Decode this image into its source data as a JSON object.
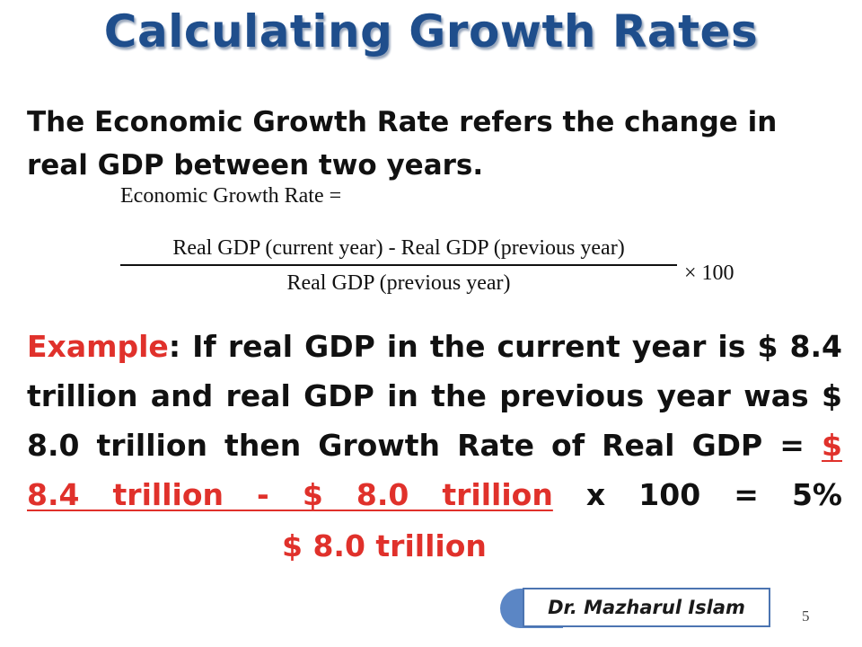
{
  "slide": {
    "title": "Calculating Growth Rates",
    "intro": "The Economic Growth Rate refers the change in real GDP between two years.",
    "formula": {
      "label": "Economic Growth  Rate =",
      "numerator": "Real GDP (current year) - Real GDP (previous year)",
      "denominator": "Real GDP (previous year)",
      "multiplier": "× 100"
    },
    "example": {
      "label": "Example",
      "colon": ":",
      "text": " If real GDP in the current year is $ 8.4 trillion and real GDP in the previous year was $ 8.0 trillion then Growth Rate of Real GDP = ",
      "numerator": "$ 8.4 trillion -  $ 8.0 trillion",
      "result": " x 100 = 5%",
      "denominator": "$ 8.0 trillion"
    },
    "author": "Dr. Mazharul Islam",
    "page_number": "5"
  },
  "colors": {
    "title": "#1f4e8c",
    "accent_red": "#e0312b",
    "author_tab": "#5b86c5"
  }
}
